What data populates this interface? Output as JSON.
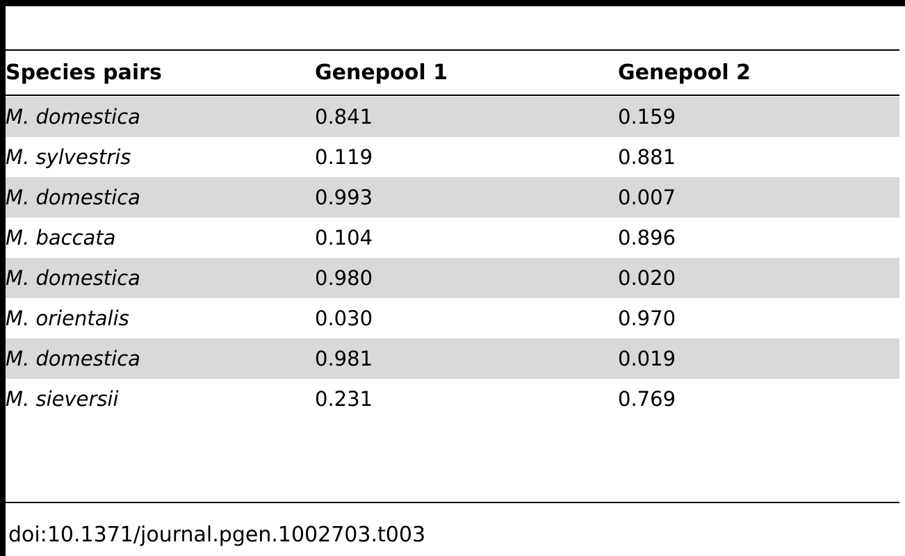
{
  "table": {
    "headers": [
      "Species pairs",
      "Genepool 1",
      "Genepool 2"
    ],
    "rows": [
      {
        "species": "M. domestica",
        "genepool1": "0.841",
        "genepool2": "0.159"
      },
      {
        "species": "M. sylvestris",
        "genepool1": "0.119",
        "genepool2": "0.881"
      },
      {
        "species": "M. domestica",
        "genepool1": "0.993",
        "genepool2": "0.007"
      },
      {
        "species": "M. baccata",
        "genepool1": "0.104",
        "genepool2": "0.896"
      },
      {
        "species": "M. domestica",
        "genepool1": "0.980",
        "genepool2": "0.020"
      },
      {
        "species": "M. orientalis",
        "genepool1": "0.030",
        "genepool2": "0.970"
      },
      {
        "species": "M. domestica",
        "genepool1": "0.981",
        "genepool2": "0.019"
      },
      {
        "species": "M. sieversii",
        "genepool1": "0.231",
        "genepool2": "0.769"
      }
    ]
  },
  "footer": {
    "doi": "doi:10.1371/journal.pgen.1002703.t003"
  },
  "colors": {
    "shaded_row": "#d9d9d9",
    "rule": "#000000"
  }
}
